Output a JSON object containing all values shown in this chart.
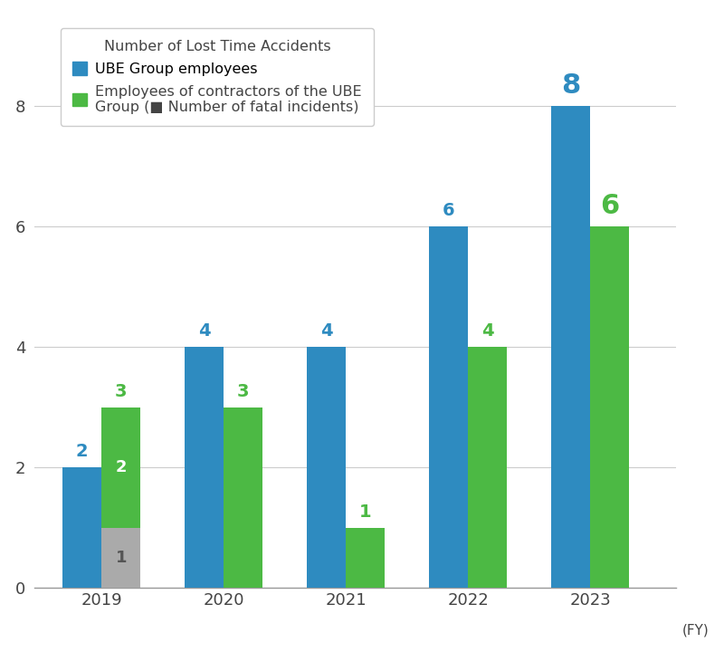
{
  "years": [
    "2019",
    "2020",
    "2021",
    "2022",
    "2023"
  ],
  "ube_employees": [
    2,
    4,
    4,
    6,
    8
  ],
  "contractors": [
    3,
    3,
    1,
    4,
    6
  ],
  "fatal_incidents": [
    1,
    0,
    0,
    0,
    0
  ],
  "blue_color": "#2E8BC0",
  "green_color": "#4CB944",
  "gray_color": "#AAAAAA",
  "label_blue_color": "#2E8BC0",
  "label_green_color": "#4CB944",
  "label_gray_color": "#555555",
  "bar_width": 0.32,
  "ylim": [
    0,
    9.5
  ],
  "yticks": [
    0,
    2,
    4,
    6,
    8
  ],
  "legend_title": "Number of Lost Time Accidents",
  "legend_label1": "UBE Group employees",
  "legend_label2": "Employees of contractors of the UBE\nGroup (■ Number of fatal incidents)",
  "fy_label": "(FY)",
  "background_color": "#FFFFFF",
  "grid_color": "#CCCCCC",
  "axis_text_color": "#444444"
}
